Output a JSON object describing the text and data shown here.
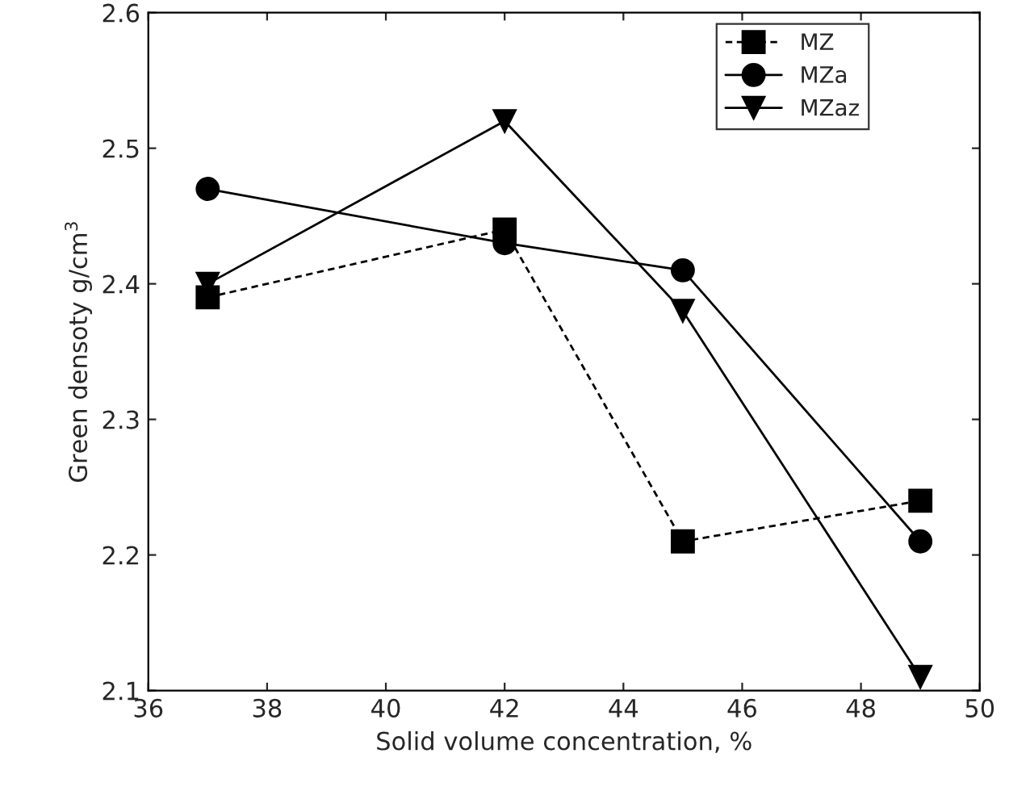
{
  "chart_data": {
    "type": "line",
    "xlabel": "Solid volume concentration, %",
    "ylabel": "Green densoty g/cm$^{3}$",
    "x": [
      37,
      42,
      45,
      49
    ],
    "series": [
      {
        "name": "MZ",
        "color": "#000000",
        "values": [
          2.39,
          2.44,
          2.21,
          2.24
        ],
        "marker": "square",
        "line_style": "dashed"
      },
      {
        "name": "MZa",
        "color": "#000000",
        "values": [
          2.47,
          2.43,
          2.41,
          2.21
        ],
        "marker": "circle",
        "line_style": "solid"
      },
      {
        "name": "MZaz",
        "color": "#000000",
        "values": [
          2.4,
          2.52,
          2.38,
          2.11
        ],
        "marker": "triangle",
        "line_style": "solid"
      }
    ],
    "xlim": [
      36,
      50
    ],
    "xticks": [
      36,
      38,
      40,
      42,
      44,
      46,
      48,
      50
    ],
    "ylim": [
      2.1,
      2.6
    ],
    "yticks": [
      2.1,
      2.2,
      2.3,
      2.4,
      2.5,
      2.6
    ],
    "legend": "top right",
    "grid": false
  }
}
